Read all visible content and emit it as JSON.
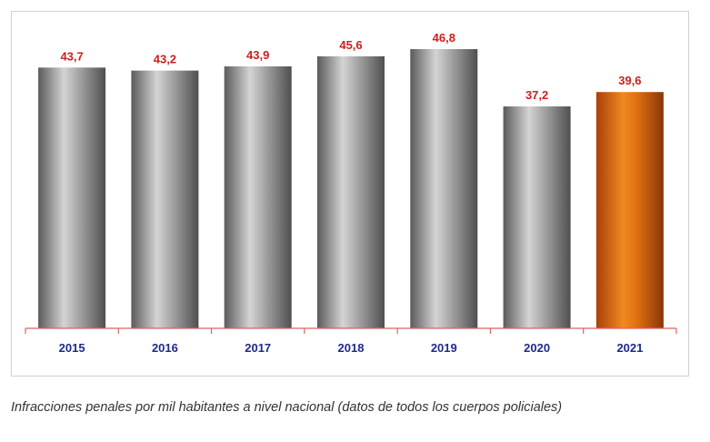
{
  "caption": "Infracciones penales por mil habitantes a nivel nacional (datos de todos los cuerpos policiales)",
  "chart_data": {
    "type": "bar",
    "categories": [
      "2015",
      "2016",
      "2017",
      "2018",
      "2019",
      "2020",
      "2021"
    ],
    "values": [
      43.7,
      43.2,
      43.9,
      45.6,
      46.8,
      37.2,
      39.6
    ],
    "data_labels": [
      "43,7",
      "43,2",
      "43,9",
      "45,6",
      "46,8",
      "37,2",
      "39,6"
    ],
    "highlight_index": 6,
    "ylim": [
      0,
      50
    ],
    "grid": false,
    "legend": "none",
    "colors": {
      "bar": "#8c8c8c",
      "highlight": "#e07a1a",
      "data_label": "#cc1f1f",
      "category_label": "#1f2a8a",
      "axis": "#e06060"
    }
  }
}
